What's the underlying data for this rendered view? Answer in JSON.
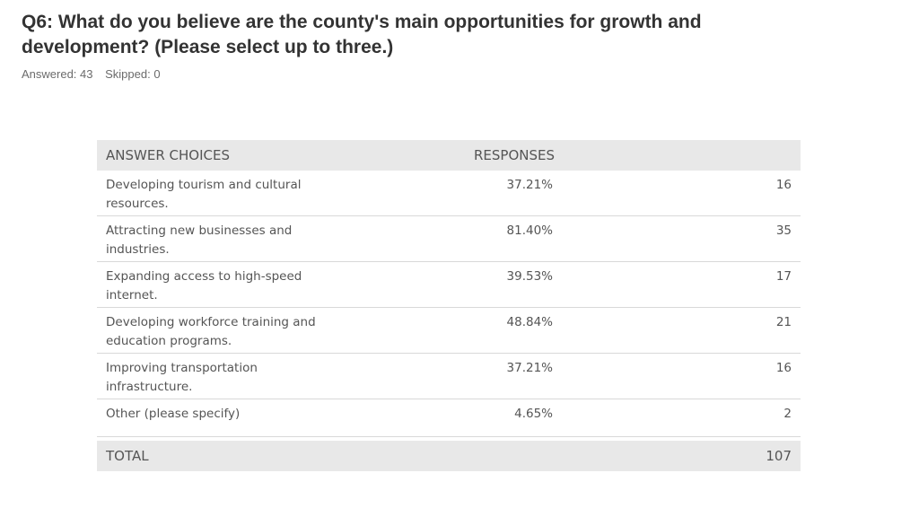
{
  "question": {
    "title": "Q6: What do you believe are the county's main opportunities for growth and development? (Please select up to three.)",
    "answered": "Answered: 43",
    "skipped": "Skipped: 0"
  },
  "table": {
    "header_choices": "ANSWER CHOICES",
    "header_responses": "RESPONSES",
    "rows": [
      {
        "choice": "Developing tourism and cultural resources.",
        "percent": "37.21%",
        "count": "16"
      },
      {
        "choice": "Attracting new businesses and industries.",
        "percent": "81.40%",
        "count": "35"
      },
      {
        "choice": "Expanding access to high-speed internet.",
        "percent": "39.53%",
        "count": "17"
      },
      {
        "choice": "Developing workforce training and education programs.",
        "percent": "48.84%",
        "count": "21"
      },
      {
        "choice": "Improving transportation infrastructure.",
        "percent": "37.21%",
        "count": "16"
      },
      {
        "choice": "Other (please specify)",
        "percent": "4.65%",
        "count": "2"
      }
    ],
    "total_label": "TOTAL",
    "total_value": "107"
  }
}
